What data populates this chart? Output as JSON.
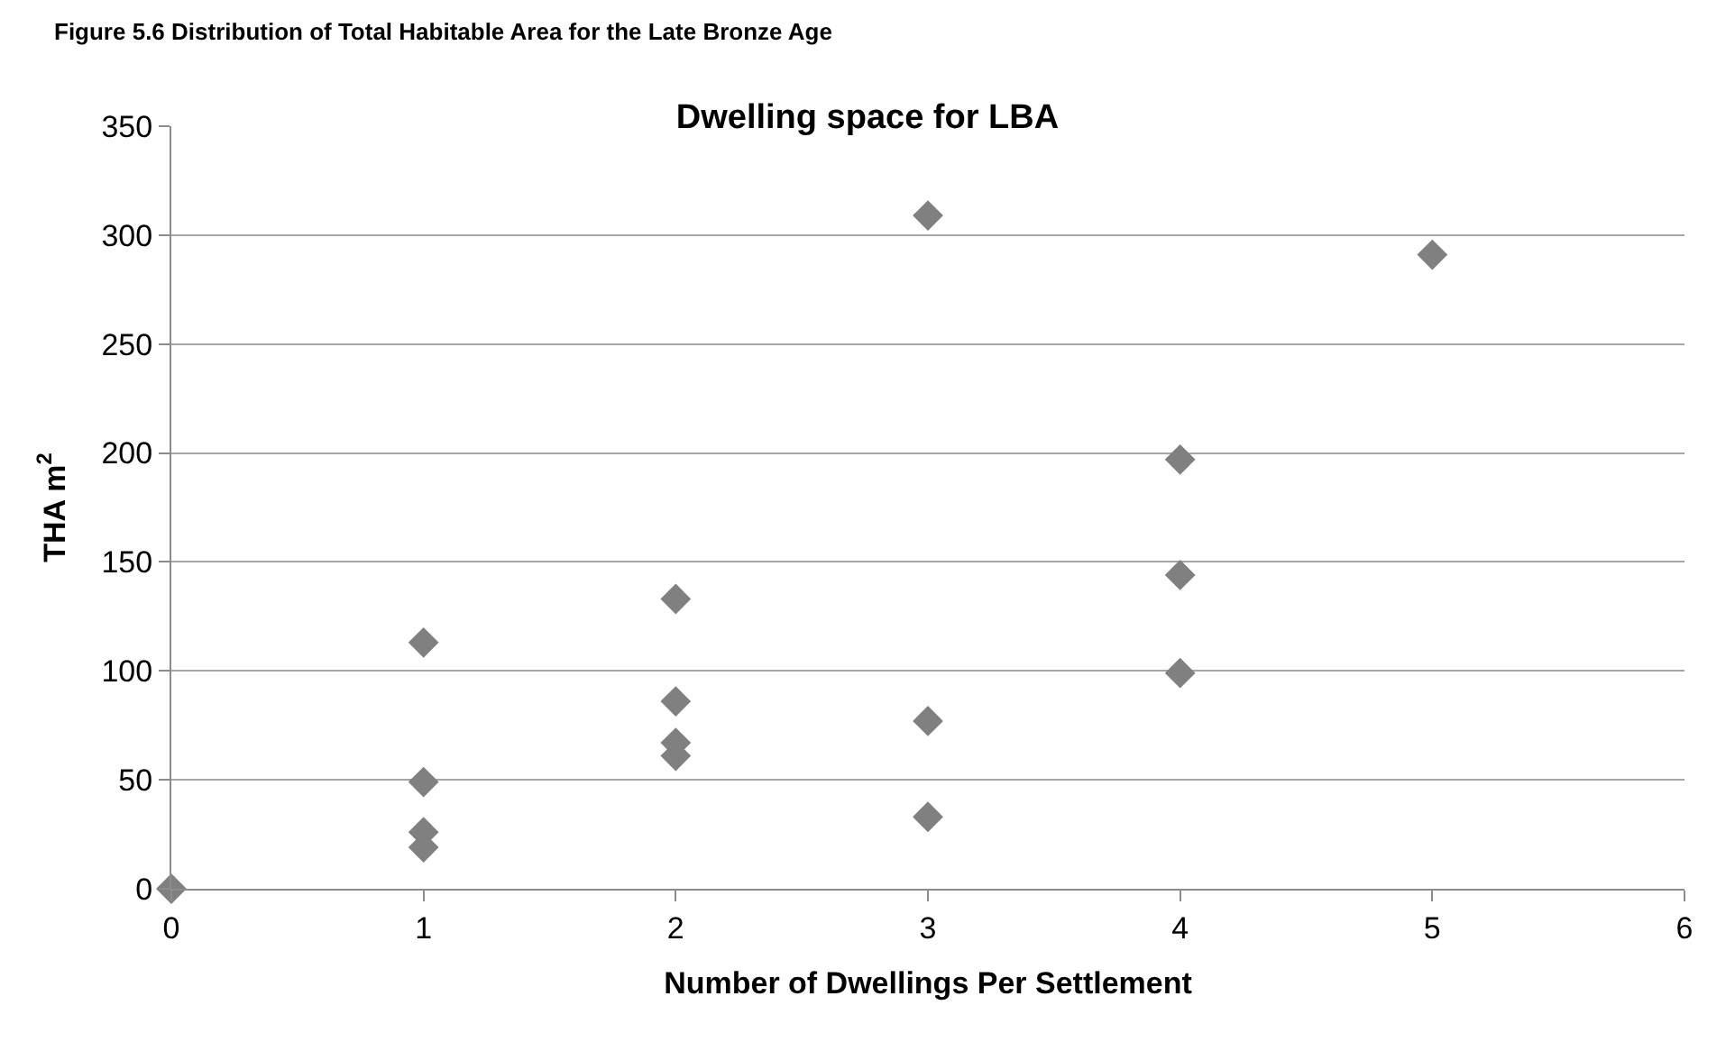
{
  "chart_data": {
    "type": "scatter",
    "title": "Dwelling space for LBA",
    "annotations": [
      "Figure 5.6 Distribution of Total Habitable Area for the Late Bronze Age"
    ],
    "xlabel": "Number of Dwellings Per Settlement",
    "ylabel": "THA m$^{2}$",
    "x": [
      0,
      1,
      1,
      1,
      1,
      2,
      2,
      2,
      2,
      3,
      3,
      3,
      4,
      4,
      4,
      5
    ],
    "values": [
      0,
      113,
      49,
      26,
      19,
      133,
      86,
      67,
      61,
      309,
      77,
      33,
      197,
      144,
      99,
      291
    ],
    "color": "#808080",
    "marker": "diamond",
    "xlim": [
      0,
      6
    ],
    "xticks": [
      0,
      1,
      2,
      3,
      4,
      5,
      6
    ],
    "ylim": [
      0,
      350
    ],
    "yticks": [
      0,
      50,
      100,
      150,
      200,
      250,
      300,
      350
    ],
    "grid": "y"
  }
}
